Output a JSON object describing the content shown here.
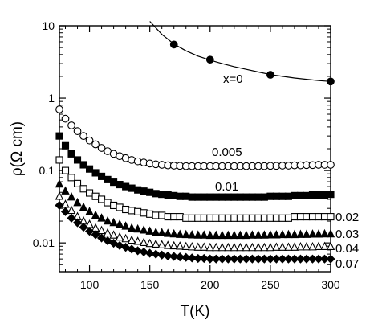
{
  "chart_data": {
    "type": "scatter",
    "title": "",
    "xlabel": "T(K)",
    "ylabel": "ρ(Ω cm)",
    "xlim": [
      75,
      300
    ],
    "ylim": [
      0.004,
      10
    ],
    "yscale": "log",
    "x_ticks": [
      100,
      150,
      200,
      250,
      300
    ],
    "x_tick_labels": [
      "100",
      "150",
      "200",
      "250",
      "300"
    ],
    "y_ticks": [
      0.01,
      0.1,
      1,
      10
    ],
    "y_tick_labels": [
      "0.01",
      "0.1",
      "1",
      "10"
    ],
    "grid": false,
    "legend": "none",
    "series": [
      {
        "name": "x=0",
        "marker": "filled-circle",
        "line": true,
        "x": [
          170,
          200,
          250,
          300
        ],
        "y": [
          5.5,
          3.4,
          2.1,
          1.7
        ],
        "curve": {
          "x": [
            150,
            160,
            170,
            180,
            190,
            200,
            210,
            220,
            230,
            240,
            250,
            260,
            270,
            280,
            290,
            300
          ],
          "y": [
            11.5,
            7.6,
            5.6,
            4.5,
            3.8,
            3.35,
            3.0,
            2.72,
            2.5,
            2.3,
            2.12,
            2.0,
            1.9,
            1.82,
            1.75,
            1.7
          ]
        }
      },
      {
        "name": "0.005",
        "marker": "open-circle",
        "line": false,
        "x": [
          75,
          80,
          85,
          90,
          95,
          100,
          105,
          110,
          115,
          120,
          125,
          130,
          135,
          140,
          145,
          150,
          155,
          160,
          165,
          170,
          175,
          180,
          185,
          190,
          195,
          200,
          205,
          210,
          215,
          220,
          225,
          230,
          235,
          240,
          245,
          250,
          255,
          260,
          265,
          270,
          275,
          280,
          285,
          290,
          295,
          300
        ],
        "y": [
          0.7,
          0.52,
          0.42,
          0.35,
          0.3,
          0.26,
          0.23,
          0.205,
          0.185,
          0.17,
          0.158,
          0.148,
          0.14,
          0.134,
          0.129,
          0.125,
          0.122,
          0.12,
          0.118,
          0.117,
          0.116,
          0.115,
          0.115,
          0.115,
          0.115,
          0.115,
          0.115,
          0.115,
          0.115,
          0.115,
          0.115,
          0.115,
          0.115,
          0.115,
          0.115,
          0.116,
          0.116,
          0.117,
          0.117,
          0.118,
          0.118,
          0.119,
          0.119,
          0.12,
          0.12,
          0.12
        ]
      },
      {
        "name": "0.01",
        "marker": "filled-square",
        "line": false,
        "x": [
          75,
          80,
          85,
          90,
          95,
          100,
          105,
          110,
          115,
          120,
          125,
          130,
          135,
          140,
          145,
          150,
          155,
          160,
          165,
          170,
          175,
          180,
          185,
          190,
          195,
          200,
          205,
          210,
          215,
          220,
          225,
          230,
          235,
          240,
          245,
          250,
          255,
          260,
          265,
          270,
          275,
          280,
          285,
          290,
          295,
          300
        ],
        "y": [
          0.3,
          0.22,
          0.17,
          0.14,
          0.12,
          0.105,
          0.093,
          0.083,
          0.075,
          0.069,
          0.064,
          0.06,
          0.057,
          0.054,
          0.052,
          0.05,
          0.048,
          0.047,
          0.046,
          0.045,
          0.044,
          0.044,
          0.043,
          0.043,
          0.043,
          0.043,
          0.043,
          0.043,
          0.043,
          0.043,
          0.043,
          0.043,
          0.043,
          0.043,
          0.043,
          0.044,
          0.044,
          0.044,
          0.044,
          0.045,
          0.045,
          0.045,
          0.046,
          0.046,
          0.046,
          0.047
        ]
      },
      {
        "name": "0.02",
        "marker": "open-square",
        "line": false,
        "x": [
          75,
          80,
          85,
          90,
          95,
          100,
          105,
          110,
          115,
          120,
          125,
          130,
          135,
          140,
          145,
          150,
          155,
          160,
          165,
          170,
          175,
          180,
          185,
          190,
          195,
          200,
          205,
          210,
          215,
          220,
          225,
          230,
          235,
          240,
          245,
          250,
          255,
          260,
          265,
          270,
          275,
          280,
          285,
          290,
          295,
          300
        ],
        "y": [
          0.14,
          0.1,
          0.08,
          0.066,
          0.056,
          0.049,
          0.044,
          0.04,
          0.036,
          0.033,
          0.031,
          0.029,
          0.028,
          0.027,
          0.026,
          0.025,
          0.024,
          0.024,
          0.023,
          0.023,
          0.023,
          0.022,
          0.022,
          0.022,
          0.022,
          0.022,
          0.022,
          0.022,
          0.022,
          0.022,
          0.022,
          0.022,
          0.022,
          0.022,
          0.022,
          0.022,
          0.022,
          0.022,
          0.022,
          0.023,
          0.023,
          0.023,
          0.023,
          0.023,
          0.023,
          0.023
        ]
      },
      {
        "name": "0.03",
        "marker": "filled-triangle",
        "line": false,
        "x": [
          75,
          80,
          85,
          90,
          95,
          100,
          105,
          110,
          115,
          120,
          125,
          130,
          135,
          140,
          145,
          150,
          155,
          160,
          165,
          170,
          175,
          180,
          185,
          190,
          195,
          200,
          205,
          210,
          215,
          220,
          225,
          230,
          235,
          240,
          245,
          250,
          255,
          260,
          265,
          270,
          275,
          280,
          285,
          290,
          295,
          300
        ],
        "y": [
          0.065,
          0.052,
          0.043,
          0.036,
          0.031,
          0.027,
          0.024,
          0.022,
          0.02,
          0.019,
          0.018,
          0.017,
          0.016,
          0.0155,
          0.015,
          0.0145,
          0.014,
          0.0138,
          0.0135,
          0.0133,
          0.0131,
          0.013,
          0.0129,
          0.0128,
          0.0128,
          0.0127,
          0.0127,
          0.0127,
          0.0127,
          0.0127,
          0.0127,
          0.0127,
          0.0128,
          0.0128,
          0.0128,
          0.0129,
          0.0129,
          0.013,
          0.013,
          0.013,
          0.0131,
          0.0131,
          0.0132,
          0.0132,
          0.0133,
          0.0133
        ]
      },
      {
        "name": "0.04",
        "marker": "open-triangle",
        "line": false,
        "x": [
          75,
          80,
          85,
          90,
          95,
          100,
          105,
          110,
          115,
          120,
          125,
          130,
          135,
          140,
          145,
          150,
          155,
          160,
          165,
          170,
          175,
          180,
          185,
          190,
          195,
          200,
          205,
          210,
          215,
          220,
          225,
          230,
          235,
          240,
          245,
          250,
          255,
          260,
          265,
          270,
          275,
          280,
          285,
          290,
          295,
          300
        ],
        "y": [
          0.044,
          0.034,
          0.028,
          0.023,
          0.02,
          0.018,
          0.016,
          0.0148,
          0.0137,
          0.0128,
          0.012,
          0.0114,
          0.0109,
          0.0105,
          0.0101,
          0.0098,
          0.0096,
          0.0094,
          0.0092,
          0.0091,
          0.009,
          0.0089,
          0.0088,
          0.0087,
          0.0087,
          0.0086,
          0.0086,
          0.0086,
          0.0086,
          0.0086,
          0.0086,
          0.0086,
          0.0086,
          0.0086,
          0.0086,
          0.0086,
          0.0087,
          0.0087,
          0.0087,
          0.0087,
          0.0088,
          0.0088,
          0.0088,
          0.0089,
          0.0089,
          0.0089
        ]
      },
      {
        "name": "0.07",
        "marker": "filled-diamond",
        "line": false,
        "x": [
          75,
          80,
          85,
          90,
          95,
          100,
          105,
          110,
          115,
          120,
          125,
          130,
          135,
          140,
          145,
          150,
          155,
          160,
          165,
          170,
          175,
          180,
          185,
          190,
          195,
          200,
          205,
          210,
          215,
          220,
          225,
          230,
          235,
          240,
          245,
          250,
          255,
          260,
          265,
          270,
          275,
          280,
          285,
          290,
          295,
          300
        ],
        "y": [
          0.033,
          0.027,
          0.022,
          0.019,
          0.0165,
          0.0145,
          0.013,
          0.0117,
          0.0107,
          0.0099,
          0.0092,
          0.0087,
          0.0082,
          0.0078,
          0.0075,
          0.0072,
          0.007,
          0.0068,
          0.0066,
          0.0065,
          0.0064,
          0.0063,
          0.0062,
          0.0061,
          0.0061,
          0.006,
          0.006,
          0.006,
          0.006,
          0.006,
          0.006,
          0.006,
          0.006,
          0.006,
          0.006,
          0.006,
          0.006,
          0.006,
          0.006,
          0.006,
          0.006,
          0.006,
          0.006,
          0.006,
          0.006,
          0.006
        ]
      }
    ]
  }
}
